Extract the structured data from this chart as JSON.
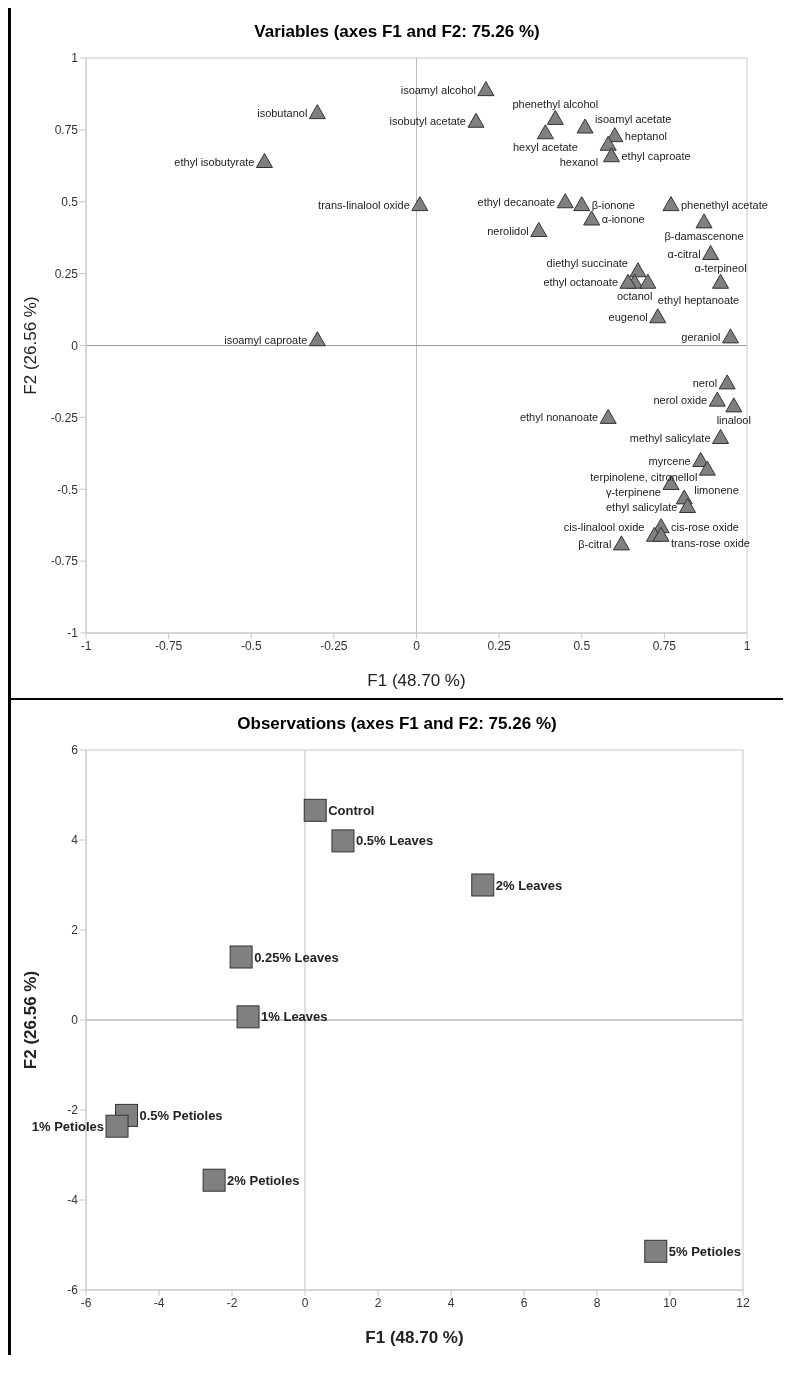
{
  "chart_data": [
    {
      "type": "scatter",
      "title": "Variables (axes F1 and F2: 75.26 %)",
      "xlabel": "F1 (48.70 %)",
      "ylabel": "F2 (26.56 %)",
      "marker": "triangle",
      "xlim": [
        -1,
        1
      ],
      "ylim": [
        -1,
        1
      ],
      "xticks": [
        -1,
        -0.75,
        -0.5,
        -0.25,
        0,
        0.25,
        0.5,
        0.75,
        1
      ],
      "yticks": [
        -1,
        -0.75,
        -0.5,
        -0.25,
        0,
        0.25,
        0.5,
        0.75,
        1
      ],
      "ref_lines": [
        {
          "axis": "x",
          "value": 0,
          "color": "#bdbdbd"
        },
        {
          "axis": "y",
          "value": 0,
          "color": "#999999"
        }
      ],
      "series": [
        {
          "color": "#808080",
          "x": [
            0.21,
            -0.3,
            0.18,
            0.42,
            0.39,
            0.51,
            0.6,
            0.58,
            0.59,
            -0.46,
            0.01,
            0.45,
            0.5,
            0.77,
            0.53,
            0.87,
            0.37,
            0.89,
            0.67,
            0.66,
            0.64,
            0.7,
            0.92,
            0.73,
            0.95,
            -0.3,
            0.94,
            0.91,
            0.96,
            0.58,
            0.92,
            0.86,
            0.88,
            0.77,
            0.81,
            0.82,
            0.74,
            0.72,
            0.74,
            0.62
          ],
          "values": [
            0.89,
            0.81,
            0.78,
            0.79,
            0.74,
            0.76,
            0.73,
            0.7,
            0.66,
            0.64,
            0.49,
            0.5,
            0.49,
            0.49,
            0.44,
            0.43,
            0.4,
            0.32,
            0.26,
            0.22,
            0.22,
            0.22,
            0.22,
            0.1,
            0.03,
            0.02,
            -0.13,
            -0.19,
            -0.21,
            -0.25,
            -0.32,
            -0.4,
            -0.43,
            -0.48,
            -0.53,
            -0.56,
            -0.63,
            -0.66,
            -0.66,
            -0.69
          ]
        }
      ],
      "annotations": [
        {
          "text": "isoamyl alcohol",
          "x": 0.21,
          "y": 0.89
        },
        {
          "text": "isobutanol",
          "x": -0.3,
          "y": 0.81
        },
        {
          "text": "isobutyl acetate",
          "x": 0.18,
          "y": 0.78
        },
        {
          "text": "phenethyl alcohol",
          "x": 0.42,
          "y": 0.79
        },
        {
          "text": "hexyl acetate",
          "x": 0.39,
          "y": 0.74
        },
        {
          "text": "isoamyl acetate",
          "x": 0.51,
          "y": 0.76
        },
        {
          "text": "heptanol",
          "x": 0.6,
          "y": 0.73
        },
        {
          "text": "hexanol",
          "x": 0.58,
          "y": 0.7
        },
        {
          "text": "ethyl caproate",
          "x": 0.59,
          "y": 0.66
        },
        {
          "text": "ethyl isobutyrate",
          "x": -0.46,
          "y": 0.64
        },
        {
          "text": "trans-linalool oxide",
          "x": 0.01,
          "y": 0.49
        },
        {
          "text": "ethyl decanoate",
          "x": 0.45,
          "y": 0.5
        },
        {
          "text": "β-ionone",
          "x": 0.5,
          "y": 0.49
        },
        {
          "text": "phenethyl acetate",
          "x": 0.77,
          "y": 0.49
        },
        {
          "text": "α-ionone",
          "x": 0.53,
          "y": 0.44
        },
        {
          "text": "β-damascenone",
          "x": 0.87,
          "y": 0.43
        },
        {
          "text": "nerolidol",
          "x": 0.37,
          "y": 0.4
        },
        {
          "text": "α-citral",
          "x": 0.89,
          "y": 0.32
        },
        {
          "text": "diethyl succinate",
          "x": 0.67,
          "y": 0.26
        },
        {
          "text": "octanol",
          "x": 0.66,
          "y": 0.22
        },
        {
          "text": "ethyl octanoate",
          "x": 0.64,
          "y": 0.22
        },
        {
          "text": "ethyl heptanoate",
          "x": 0.7,
          "y": 0.22
        },
        {
          "text": "α-terpineol",
          "x": 0.92,
          "y": 0.22
        },
        {
          "text": "eugenol",
          "x": 0.73,
          "y": 0.1
        },
        {
          "text": "geraniol",
          "x": 0.95,
          "y": 0.03
        },
        {
          "text": "isoamyl caproate",
          "x": -0.3,
          "y": 0.02
        },
        {
          "text": "nerol",
          "x": 0.94,
          "y": -0.13
        },
        {
          "text": "nerol oxide",
          "x": 0.91,
          "y": -0.19
        },
        {
          "text": "linalool",
          "x": 0.96,
          "y": -0.21
        },
        {
          "text": "ethyl nonanoate",
          "x": 0.58,
          "y": -0.25
        },
        {
          "text": "methyl salicylate",
          "x": 0.92,
          "y": -0.32
        },
        {
          "text": "myrcene",
          "x": 0.86,
          "y": -0.4
        },
        {
          "text": "terpinolene, citronellol",
          "x": 0.88,
          "y": -0.43
        },
        {
          "text": "γ-terpinene",
          "x": 0.77,
          "y": -0.48
        },
        {
          "text": "limonene",
          "x": 0.81,
          "y": -0.53
        },
        {
          "text": "ethyl salicylate",
          "x": 0.82,
          "y": -0.56
        },
        {
          "text": "cis-rose oxide",
          "x": 0.74,
          "y": -0.63
        },
        {
          "text": "cis-linalool oxide",
          "x": 0.72,
          "y": -0.66
        },
        {
          "text": "trans-rose oxide",
          "x": 0.74,
          "y": -0.66
        },
        {
          "text": "β-citral",
          "x": 0.62,
          "y": -0.69
        }
      ]
    },
    {
      "type": "scatter",
      "title": "Observations (axes F1 and F2: 75.26 %)",
      "xlabel": "F1 (48.70 %)",
      "ylabel": "F2 (26.56 %)",
      "marker": "square",
      "xlim": [
        -6,
        12
      ],
      "ylim": [
        -6,
        6
      ],
      "xticks": [
        -6,
        -4,
        -2,
        0,
        2,
        4,
        6,
        8,
        10,
        12
      ],
      "yticks": [
        -6,
        -4,
        -2,
        0,
        2,
        4,
        6
      ],
      "ref_lines": [
        {
          "axis": "x",
          "value": 0,
          "color": "#bdbdbd"
        },
        {
          "axis": "y",
          "value": 0,
          "color": "#999999"
        }
      ],
      "series": [
        {
          "color": "#808080",
          "x": [
            0.28,
            1.04,
            4.87,
            -1.75,
            -1.56,
            -4.89,
            -5.15,
            -2.49,
            9.61
          ],
          "values": [
            4.66,
            3.98,
            3.0,
            1.4,
            0.07,
            -2.12,
            -2.36,
            -3.56,
            -5.14
          ]
        }
      ],
      "annotations": [
        {
          "text": "Control",
          "x": 0.28,
          "y": 4.66
        },
        {
          "text": "0.5% Leaves",
          "x": 1.04,
          "y": 3.98
        },
        {
          "text": "2% Leaves",
          "x": 4.87,
          "y": 3.0
        },
        {
          "text": "0.25% Leaves",
          "x": -1.75,
          "y": 1.4
        },
        {
          "text": "1% Leaves",
          "x": -1.56,
          "y": 0.07
        },
        {
          "text": "0.5% Petioles",
          "x": -4.89,
          "y": -2.12
        },
        {
          "text": "1% Petioles",
          "x": -5.15,
          "y": -2.36
        },
        {
          "text": "2% Petioles",
          "x": -2.49,
          "y": -3.56
        },
        {
          "text": "5% Petioles",
          "x": 9.61,
          "y": -5.14
        }
      ]
    }
  ]
}
